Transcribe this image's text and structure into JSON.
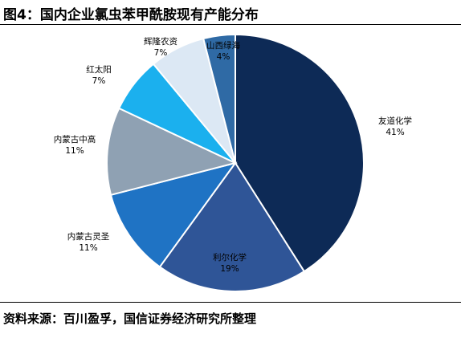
{
  "figure": {
    "title": "图4：国内企业氯虫苯甲酰胺现有产能分布",
    "source": "资料来源：百川盈孚，国信证券经济研究所整理"
  },
  "chart_data": {
    "type": "pie",
    "title": "图4：国内企业氯虫苯甲酰胺现有产能分布",
    "start_angle_deg": 0,
    "direction": "clockwise",
    "slices": [
      {
        "name": "友道化学",
        "value": 41,
        "label": "41%",
        "color": "#0d2a56"
      },
      {
        "name": "利尔化学",
        "value": 19,
        "label": "19%",
        "color": "#2f5597"
      },
      {
        "name": "内蒙古灵圣",
        "value": 11,
        "label": "11%",
        "color": "#1f73c4"
      },
      {
        "name": "内蒙古中高",
        "value": 11,
        "label": "11%",
        "color": "#8fa1b3"
      },
      {
        "name": "红太阳",
        "value": 7,
        "label": "7%",
        "color": "#1bb0ee"
      },
      {
        "name": "辉隆农资",
        "value": 7,
        "label": "7%",
        "color": "#dce8f4"
      },
      {
        "name": "山西绿海",
        "value": 4,
        "label": "4%",
        "color": "#2f6aa5"
      }
    ]
  }
}
